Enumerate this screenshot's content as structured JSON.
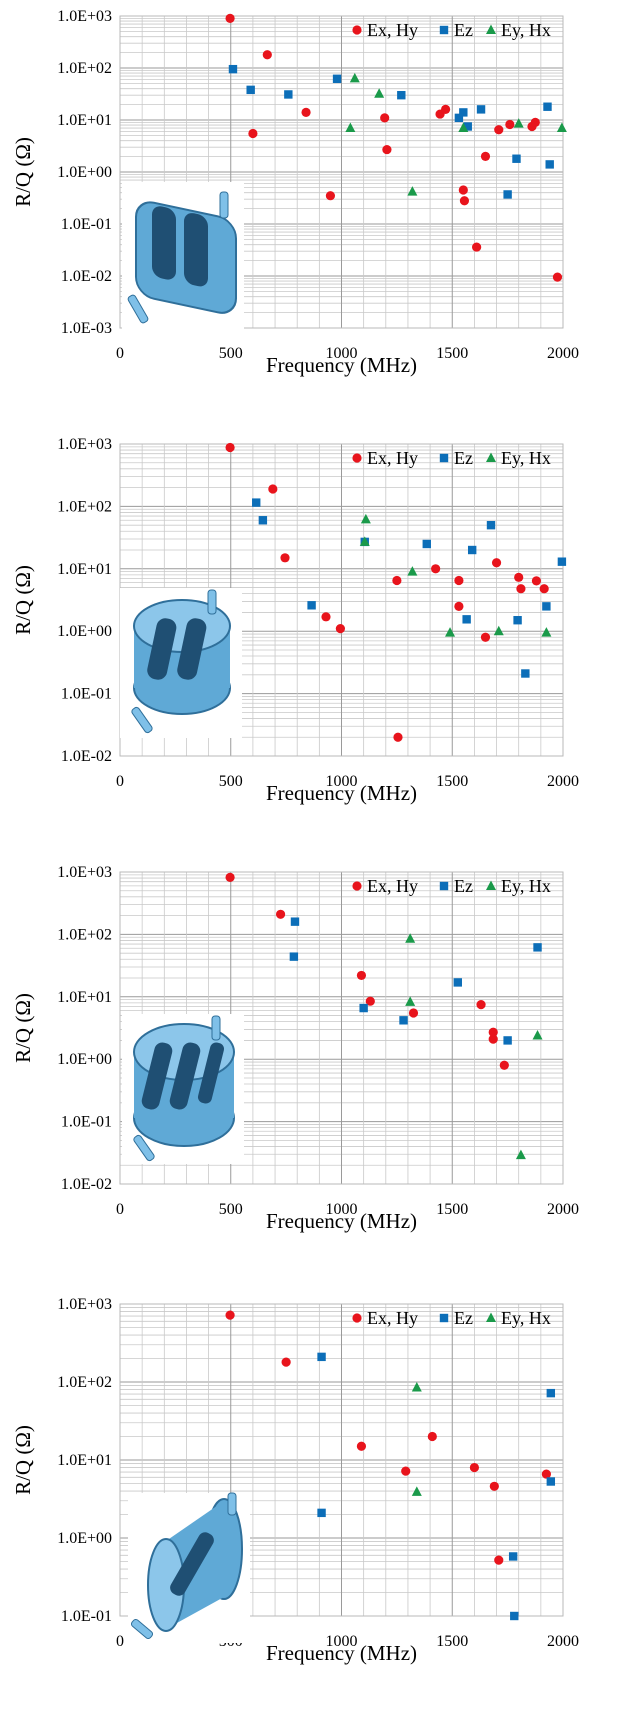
{
  "chart_data": [
    {
      "type": "scatter",
      "xlabel": "Frequency (MHz)",
      "ylabel": "R/Q (Ω)",
      "xlim": [
        0,
        2000
      ],
      "ylim": [
        0.001,
        1000
      ],
      "yscale": "log",
      "xticks": [
        "0",
        "500",
        "1000",
        "1500",
        "2000"
      ],
      "yticks": [
        "1.0E-03",
        "1.0E-02",
        "1.0E-01",
        "1.0E+00",
        "1.0E+01",
        "1.0E+02",
        "1.0E+03"
      ],
      "legend_position": "top-right",
      "grid": true,
      "series": [
        {
          "name": "Ex, Hy",
          "color": "#e8141c",
          "marker": "circle",
          "points": [
            [
              497,
              900
            ],
            [
              600,
              5.5
            ],
            [
              665,
              180
            ],
            [
              840,
              14
            ],
            [
              950,
              0.35
            ],
            [
              1195,
              11
            ],
            [
              1205,
              2.7
            ],
            [
              1445,
              13
            ],
            [
              1470,
              16
            ],
            [
              1550,
              0.45
            ],
            [
              1555,
              0.28
            ],
            [
              1610,
              0.036
            ],
            [
              1650,
              2.0
            ],
            [
              1710,
              6.5
            ],
            [
              1760,
              8.2
            ],
            [
              1860,
              7.5
            ],
            [
              1875,
              9
            ],
            [
              1975,
              0.0095
            ]
          ]
        },
        {
          "name": "Ez",
          "color": "#0c6eb8",
          "marker": "square",
          "points": [
            [
              510,
              95
            ],
            [
              590,
              38
            ],
            [
              760,
              31
            ],
            [
              980,
              62
            ],
            [
              1270,
              30
            ],
            [
              1530,
              11
            ],
            [
              1550,
              14
            ],
            [
              1570,
              7.5
            ],
            [
              1630,
              16
            ],
            [
              1750,
              0.37
            ],
            [
              1790,
              1.8
            ],
            [
              1930,
              18
            ],
            [
              1940,
              1.4
            ]
          ]
        },
        {
          "name": "Ey, Hx",
          "color": "#1a9a4a",
          "marker": "triangle",
          "points": [
            [
              1040,
              7
            ],
            [
              1060,
              63
            ],
            [
              1170,
              32
            ],
            [
              1320,
              0.42
            ],
            [
              1550,
              7
            ],
            [
              1800,
              8.5
            ],
            [
              1995,
              7
            ]
          ]
        }
      ]
    },
    {
      "type": "scatter",
      "xlabel": "Frequency (MHz)",
      "ylabel": "R/Q (Ω)",
      "xlim": [
        0,
        2000
      ],
      "ylim": [
        0.01,
        1000
      ],
      "yscale": "log",
      "xticks": [
        "0",
        "500",
        "1000",
        "1500",
        "2000"
      ],
      "yticks": [
        "1.0E-02",
        "1.0E-01",
        "1.0E+00",
        "1.0E+01",
        "1.0E+02",
        "1.0E+03"
      ],
      "legend_position": "top-right",
      "grid": true,
      "series": [
        {
          "name": "Ex, Hy",
          "color": "#e8141c",
          "marker": "circle",
          "points": [
            [
              497,
              880
            ],
            [
              690,
              190
            ],
            [
              745,
              15
            ],
            [
              930,
              1.7
            ],
            [
              995,
              1.1
            ],
            [
              1250,
              6.5
            ],
            [
              1255,
              0.02
            ],
            [
              1425,
              10
            ],
            [
              1530,
              6.5
            ],
            [
              1530,
              2.5
            ],
            [
              1650,
              0.8
            ],
            [
              1700,
              12.5
            ],
            [
              1800,
              7.3
            ],
            [
              1810,
              4.8
            ],
            [
              1880,
              6.4
            ],
            [
              1915,
              4.8
            ]
          ]
        },
        {
          "name": "Ez",
          "color": "#0c6eb8",
          "marker": "square",
          "points": [
            [
              615,
              115
            ],
            [
              645,
              60
            ],
            [
              865,
              2.6
            ],
            [
              1105,
              27
            ],
            [
              1385,
              25
            ],
            [
              1565,
              1.55
            ],
            [
              1590,
              20
            ],
            [
              1675,
              50
            ],
            [
              1795,
              1.5
            ],
            [
              1830,
              0.21
            ],
            [
              1925,
              2.5
            ],
            [
              1995,
              13
            ]
          ]
        },
        {
          "name": "Ey, Hx",
          "color": "#1a9a4a",
          "marker": "triangle",
          "points": [
            [
              1110,
              62
            ],
            [
              1105,
              27
            ],
            [
              1320,
              9
            ],
            [
              1490,
              0.95
            ],
            [
              1710,
              1.0
            ],
            [
              1925,
              0.95
            ]
          ]
        }
      ]
    },
    {
      "type": "scatter",
      "xlabel": "Frequency (MHz)",
      "ylabel": "R/Q (Ω)",
      "xlim": [
        0,
        2000
      ],
      "ylim": [
        0.01,
        1000
      ],
      "yscale": "log",
      "xticks": [
        "0",
        "500",
        "1000",
        "1500",
        "2000"
      ],
      "yticks": [
        "1.0E-02",
        "1.0E-01",
        "1.0E+00",
        "1.0E+01",
        "1.0E+02",
        "1.0E+03"
      ],
      "legend_position": "top-right",
      "grid": true,
      "series": [
        {
          "name": "Ex, Hy",
          "color": "#e8141c",
          "marker": "circle",
          "points": [
            [
              497,
              820
            ],
            [
              725,
              210
            ],
            [
              1090,
              22
            ],
            [
              1130,
              8.5
            ],
            [
              1325,
              5.5
            ],
            [
              1630,
              7.5
            ],
            [
              1685,
              2.7
            ],
            [
              1685,
              2.1
            ],
            [
              1735,
              0.8
            ]
          ]
        },
        {
          "name": "Ez",
          "color": "#0c6eb8",
          "marker": "square",
          "points": [
            [
              790,
              160
            ],
            [
              785,
              44
            ],
            [
              1100,
              6.6
            ],
            [
              1280,
              4.2
            ],
            [
              1525,
              17
            ],
            [
              1750,
              2.0
            ],
            [
              1885,
              62
            ]
          ]
        },
        {
          "name": "Ey, Hx",
          "color": "#1a9a4a",
          "marker": "triangle",
          "points": [
            [
              1310,
              85
            ],
            [
              1310,
              8.3
            ],
            [
              1810,
              0.029
            ],
            [
              1885,
              2.4
            ]
          ]
        }
      ]
    },
    {
      "type": "scatter",
      "xlabel": "Frequency (MHz)",
      "ylabel": "R/Q (Ω)",
      "xlim": [
        0,
        2000
      ],
      "ylim": [
        0.1,
        1000
      ],
      "yscale": "log",
      "xticks": [
        "0",
        "500",
        "1000",
        "1500",
        "2000"
      ],
      "yticks": [
        "1.0E-01",
        "1.0E+00",
        "1.0E+01",
        "1.0E+02",
        "1.0E+03"
      ],
      "legend_position": "top-right",
      "grid": true,
      "series": [
        {
          "name": "Ex, Hy",
          "color": "#e8141c",
          "marker": "circle",
          "points": [
            [
              497,
              720
            ],
            [
              750,
              180
            ],
            [
              1090,
              15
            ],
            [
              1290,
              7.2
            ],
            [
              1410,
              20
            ],
            [
              1600,
              8
            ],
            [
              1690,
              4.6
            ],
            [
              1710,
              0.52
            ],
            [
              1925,
              6.6
            ]
          ]
        },
        {
          "name": "Ez",
          "color": "#0c6eb8",
          "marker": "square",
          "points": [
            [
              910,
              210
            ],
            [
              910,
              2.1
            ],
            [
              1775,
              0.58
            ],
            [
              1780,
              0.1
            ],
            [
              1945,
              72
            ],
            [
              1945,
              5.3
            ]
          ]
        },
        {
          "name": "Ey, Hx",
          "color": "#1a9a4a",
          "marker": "triangle",
          "points": [
            [
              1340,
              85
            ],
            [
              1340,
              3.9
            ]
          ]
        }
      ]
    }
  ]
}
